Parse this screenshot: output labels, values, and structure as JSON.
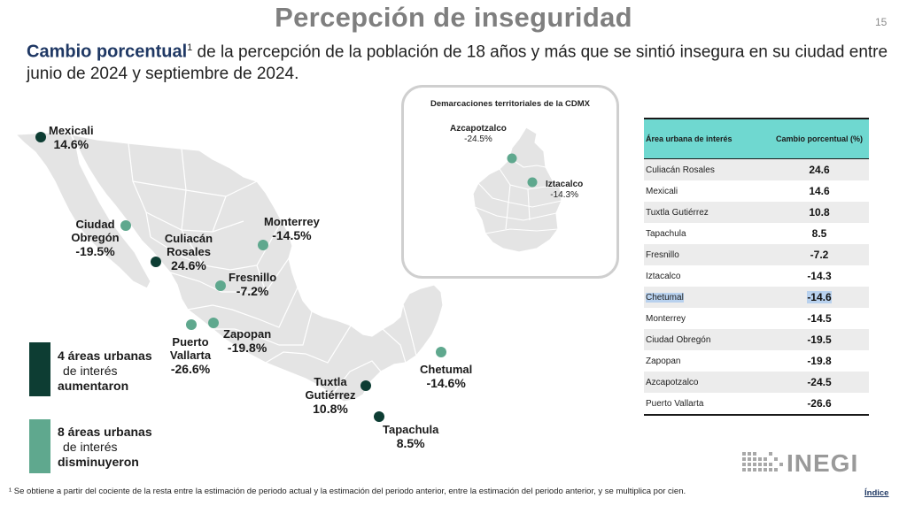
{
  "title": "Percepción de inseguridad",
  "page_number": "15",
  "subtitle": {
    "bold": "Cambio porcentual",
    "sup": "1",
    "rest": " de la percepción de la población de 18 años y más que se sintió insegura en su ciudad entre junio de 2024 y septiembre de 2024."
  },
  "colors": {
    "increase": "#0d3d33",
    "decrease": "#5fa88e",
    "map_fill": "#e4e4e4",
    "table_header": "#6fd8d0",
    "title_blue": "#1f3864"
  },
  "map_labels": [
    {
      "name": "Mexicali",
      "value": "14.6%",
      "trend": "up"
    },
    {
      "name": "Ciudad Obregón",
      "value": "-19.5%",
      "trend": "down"
    },
    {
      "name": "Culiacán Rosales",
      "value": "24.6%",
      "trend": "up"
    },
    {
      "name": "Monterrey",
      "value": "-14.5%",
      "trend": "down"
    },
    {
      "name": "Fresnillo",
      "value": "-7.2%",
      "trend": "down"
    },
    {
      "name": "Puerto Vallarta",
      "value": "-26.6%",
      "trend": "down"
    },
    {
      "name": "Zapopan",
      "value": "-19.8%",
      "trend": "down"
    },
    {
      "name": "Tuxtla Gutiérrez",
      "value": "10.8%",
      "trend": "up"
    },
    {
      "name": "Tapachula",
      "value": "8.5%",
      "trend": "up"
    },
    {
      "name": "Chetumal",
      "value": "-14.6%",
      "trend": "down"
    }
  ],
  "cdmx": {
    "title": "Demarcaciones territoriales de la CDMX",
    "labels": [
      {
        "name": "Azcapotzalco",
        "value": "-24.5%"
      },
      {
        "name": "Iztacalco",
        "value": "-14.3%"
      }
    ]
  },
  "legend": {
    "increase": {
      "line1": "4 áreas urbanas",
      "line2": "de interés",
      "line3": "aumentaron"
    },
    "decrease": {
      "line1": "8 áreas urbanas",
      "line2": "de interés",
      "line3": "disminuyeron"
    }
  },
  "table": {
    "headers": [
      "Área urbana de interés",
      "Cambio porcentual (%)"
    ],
    "rows": [
      {
        "area": "Culiacán Rosales",
        "value": "24.6"
      },
      {
        "area": "Mexicali",
        "value": "14.6"
      },
      {
        "area": "Tuxtla Gutiérrez",
        "value": "10.8"
      },
      {
        "area": "Tapachula",
        "value": "8.5"
      },
      {
        "area": "Fresnillo",
        "value": "-7.2"
      },
      {
        "area": "Iztacalco",
        "value": "-14.3"
      },
      {
        "area": "Chetumal",
        "value": "-14.6"
      },
      {
        "area": "Monterrey",
        "value": "-14.5"
      },
      {
        "area": "Ciudad Obregón",
        "value": "-19.5"
      },
      {
        "area": "Zapopan",
        "value": "-19.8"
      },
      {
        "area": "Azcapotzalco",
        "value": "-24.5"
      },
      {
        "area": "Puerto Vallarta",
        "value": "-26.6"
      }
    ]
  },
  "logo_text": "INEGI",
  "footnote": "¹ Se obtiene a partir del cociente de la resta entre la estimación de periodo actual y la estimación del periodo anterior, entre la estimación del periodo anterior, y se multiplica por cien.",
  "index_link": "Índice"
}
